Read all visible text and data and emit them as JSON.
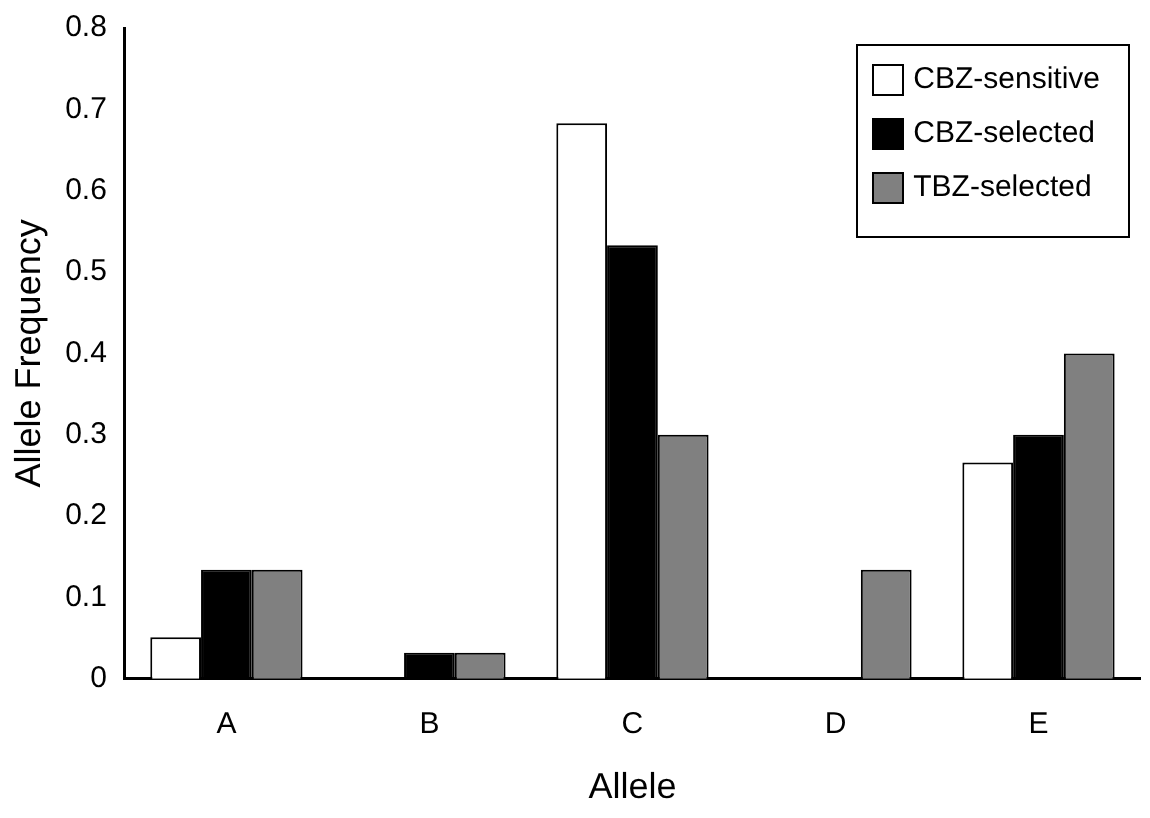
{
  "chart_data": {
    "type": "bar",
    "xlabel": "Allele",
    "ylabel": "Allele Frequency",
    "categories": [
      "A",
      "B",
      "C",
      "D",
      "E"
    ],
    "series": [
      {
        "name": "CBZ-sensitive",
        "color": "#ffffff",
        "values": [
          0.051,
          0,
          0.683,
          0,
          0.266
        ]
      },
      {
        "name": "CBZ-selected",
        "color": "#000000",
        "values": [
          0.134,
          0.032,
          0.533,
          0,
          0.3
        ]
      },
      {
        "name": "TBZ-selected",
        "color": "#808080",
        "values": [
          0.134,
          0.032,
          0.3,
          0.134,
          0.4
        ]
      }
    ],
    "ylim": [
      0,
      0.8
    ],
    "yticks": [
      {
        "value": 0,
        "label": "0"
      },
      0.1,
      0.2,
      0.3,
      0.4,
      0.5,
      0.6,
      0.7,
      0.8
    ],
    "grid": false,
    "legend": "top right"
  }
}
